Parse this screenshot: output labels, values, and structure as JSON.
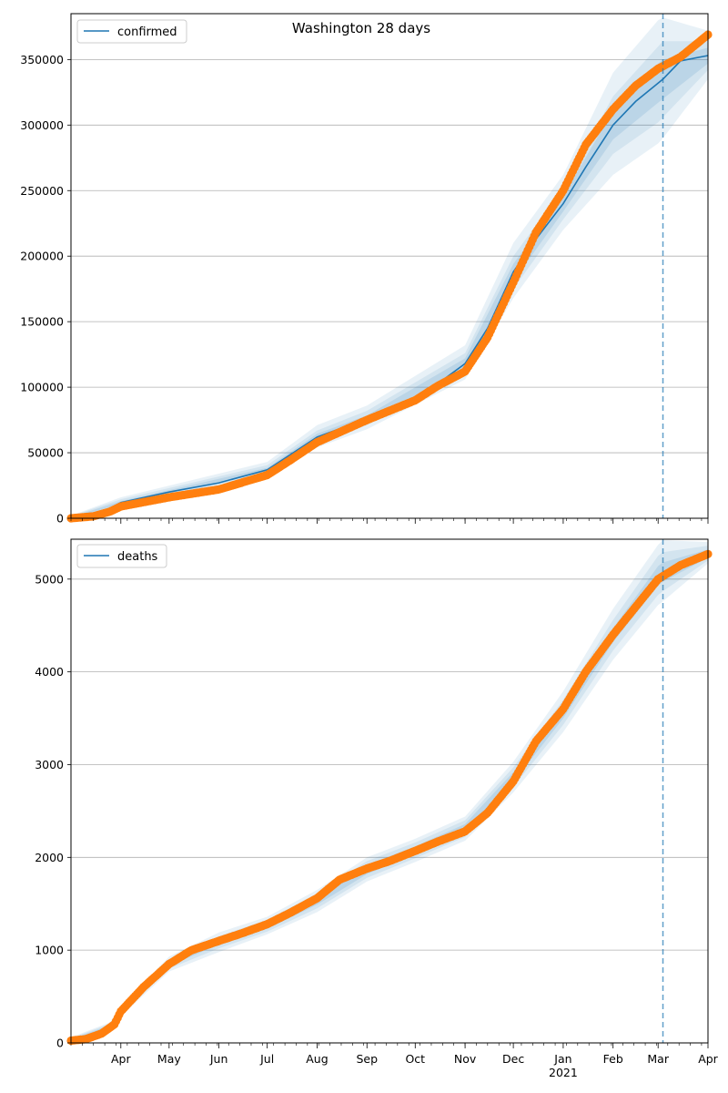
{
  "figure": {
    "title": "Washington 28 days"
  },
  "colors": {
    "model": "#1f77b4",
    "observed": "#ff7f0e",
    "grid": "#b0b0b0",
    "band": "#1f77b4"
  },
  "chart_data": [
    {
      "type": "line",
      "legend": "confirmed",
      "legend_position": "top-left",
      "x_axis": {
        "type": "date",
        "start": "2020-03-01",
        "end": "2021-04-01",
        "month_labels": [
          "Apr",
          "May",
          "Jun",
          "Jul",
          "Aug",
          "Sep",
          "Oct",
          "Nov",
          "Dec",
          "Jan",
          "Feb",
          "Mar",
          "Apr"
        ],
        "year_label": "2021"
      },
      "ylim": [
        0,
        385000
      ],
      "yticks": [
        0,
        50000,
        100000,
        150000,
        200000,
        250000,
        300000,
        350000
      ],
      "grid": "horizontal",
      "forecast_start": "2021-03-04",
      "model": {
        "name": "confirmed",
        "x": [
          "2020-03-01",
          "2020-03-20",
          "2020-04-01",
          "2020-05-01",
          "2020-06-01",
          "2020-07-01",
          "2020-08-01",
          "2020-09-01",
          "2020-10-01",
          "2020-11-01",
          "2020-11-15",
          "2020-12-01",
          "2020-12-15",
          "2021-01-01",
          "2021-01-15",
          "2021-02-01",
          "2021-02-15",
          "2021-03-01",
          "2021-03-04",
          "2021-03-15",
          "2021-04-01"
        ],
        "y": [
          0,
          4000,
          12000,
          20000,
          27000,
          37000,
          62000,
          76000,
          90000,
          118000,
          145000,
          188000,
          213000,
          240000,
          268000,
          300000,
          318000,
          332000,
          335000,
          349000,
          353000
        ]
      },
      "bands": [
        {
          "level": "outer",
          "x": [
            "2020-03-01",
            "2020-04-01",
            "2020-07-01",
            "2020-08-01",
            "2020-09-01",
            "2020-11-01",
            "2020-12-01",
            "2021-01-01",
            "2021-02-01",
            "2021-03-01",
            "2021-03-04",
            "2021-04-01"
          ],
          "lower": [
            0,
            8000,
            32000,
            54000,
            68000,
            106000,
            168000,
            220000,
            262000,
            286000,
            290000,
            335000
          ],
          "upper": [
            2000,
            16000,
            43000,
            71000,
            86000,
            132000,
            210000,
            262000,
            340000,
            380000,
            382000,
            372000
          ]
        },
        {
          "level": "middle",
          "x": [
            "2020-03-01",
            "2020-04-01",
            "2020-07-01",
            "2020-08-01",
            "2020-09-01",
            "2020-11-01",
            "2020-12-01",
            "2021-01-01",
            "2021-02-01",
            "2021-03-01",
            "2021-03-04",
            "2021-04-01"
          ],
          "lower": [
            0,
            9500,
            34000,
            57000,
            71000,
            110000,
            175000,
            228000,
            278000,
            302000,
            306000,
            342000
          ],
          "upper": [
            1500,
            14500,
            40500,
            67000,
            82000,
            126000,
            200000,
            252000,
            322000,
            360000,
            364000,
            364000
          ]
        },
        {
          "level": "inner",
          "x": [
            "2020-03-01",
            "2020-04-01",
            "2020-07-01",
            "2020-08-01",
            "2020-09-01",
            "2020-11-01",
            "2020-12-01",
            "2021-01-01",
            "2021-02-01",
            "2021-03-01",
            "2021-03-04",
            "2021-04-01"
          ],
          "lower": [
            0,
            11000,
            35500,
            59500,
            73500,
            114000,
            181000,
            234000,
            289000,
            317000,
            320000,
            347000
          ],
          "upper": [
            1000,
            13000,
            38500,
            64500,
            78500,
            122000,
            194000,
            246000,
            311000,
            347000,
            350000,
            359000
          ]
        }
      ],
      "observed": {
        "x": [
          "2020-03-01",
          "2020-03-15",
          "2020-03-25",
          "2020-04-01",
          "2020-05-01",
          "2020-06-01",
          "2020-07-01",
          "2020-07-15",
          "2020-08-01",
          "2020-09-01",
          "2020-10-01",
          "2020-10-15",
          "2020-11-01",
          "2020-11-15",
          "2020-12-01",
          "2020-12-15",
          "2021-01-01",
          "2021-01-15",
          "2021-02-01",
          "2021-02-15",
          "2021-03-01",
          "2021-03-15",
          "2021-04-01"
        ],
        "y": [
          0,
          1500,
          5000,
          9000,
          16000,
          22000,
          33000,
          44000,
          58000,
          75000,
          90000,
          101000,
          112000,
          138000,
          180000,
          218000,
          250000,
          285000,
          312000,
          330000,
          343000,
          352000,
          369000
        ]
      }
    },
    {
      "type": "line",
      "legend": "deaths",
      "legend_position": "top-left",
      "x_axis": {
        "type": "date",
        "start": "2020-03-01",
        "end": "2021-04-01",
        "month_labels": [
          "Apr",
          "May",
          "Jun",
          "Jul",
          "Aug",
          "Sep",
          "Oct",
          "Nov",
          "Dec",
          "Jan",
          "Feb",
          "Mar",
          "Apr"
        ],
        "year_label": "2021"
      },
      "ylim": [
        0,
        5430
      ],
      "yticks": [
        0,
        1000,
        2000,
        3000,
        4000,
        5000
      ],
      "grid": "horizontal",
      "forecast_start": "2021-03-04",
      "bands": [
        {
          "level": "outer",
          "x": [
            "2020-03-01",
            "2020-03-25",
            "2020-04-01",
            "2020-05-01",
            "2020-06-01",
            "2020-07-01",
            "2020-08-01",
            "2020-09-01",
            "2020-10-01",
            "2020-11-01",
            "2020-12-01",
            "2021-01-01",
            "2021-02-01",
            "2021-03-01",
            "2021-03-04",
            "2021-04-01"
          ],
          "lower": [
            0,
            120,
            290,
            770,
            980,
            1170,
            1410,
            1740,
            1950,
            2180,
            2700,
            3350,
            4130,
            4720,
            4760,
            5170
          ],
          "upper": [
            60,
            220,
            390,
            930,
            1190,
            1360,
            1650,
            2000,
            2200,
            2440,
            3030,
            3790,
            4680,
            5370,
            5420,
            5400
          ]
        },
        {
          "level": "middle",
          "x": [
            "2020-03-01",
            "2020-03-25",
            "2020-04-01",
            "2020-05-01",
            "2020-06-01",
            "2020-07-01",
            "2020-08-01",
            "2020-09-01",
            "2020-10-01",
            "2020-11-01",
            "2020-12-01",
            "2021-01-01",
            "2021-02-01",
            "2021-03-01",
            "2021-03-04",
            "2021-04-01"
          ],
          "lower": [
            0,
            135,
            305,
            800,
            1020,
            1200,
            1450,
            1780,
            1990,
            2220,
            2760,
            3430,
            4230,
            4830,
            4870,
            5200
          ],
          "upper": [
            50,
            205,
            375,
            900,
            1150,
            1330,
            1610,
            1960,
            2160,
            2400,
            2970,
            3700,
            4560,
            5250,
            5290,
            5360
          ]
        },
        {
          "level": "inner",
          "x": [
            "2020-03-01",
            "2020-03-25",
            "2020-04-01",
            "2020-05-01",
            "2020-06-01",
            "2020-07-01",
            "2020-08-01",
            "2020-09-01",
            "2020-10-01",
            "2020-11-01",
            "2020-12-01",
            "2021-01-01",
            "2021-02-01",
            "2021-03-01",
            "2021-03-04",
            "2021-04-01"
          ],
          "lower": [
            0,
            150,
            320,
            830,
            1060,
            1230,
            1490,
            1820,
            2030,
            2260,
            2810,
            3500,
            4320,
            4930,
            4970,
            5230
          ],
          "upper": [
            40,
            190,
            360,
            870,
            1110,
            1300,
            1570,
            1920,
            2120,
            2360,
            2920,
            3630,
            4470,
            5140,
            5180,
            5320
          ]
        }
      ],
      "observed": {
        "x": [
          "2020-03-01",
          "2020-03-10",
          "2020-03-20",
          "2020-03-28",
          "2020-04-01",
          "2020-04-15",
          "2020-05-01",
          "2020-05-15",
          "2020-06-01",
          "2020-06-15",
          "2020-07-01",
          "2020-07-15",
          "2020-08-01",
          "2020-08-15",
          "2020-09-01",
          "2020-09-15",
          "2020-10-01",
          "2020-10-15",
          "2020-11-01",
          "2020-11-15",
          "2020-12-01",
          "2020-12-15",
          "2021-01-01",
          "2021-01-15",
          "2021-02-01",
          "2021-02-15",
          "2021-03-01",
          "2021-03-15",
          "2021-04-01"
        ],
        "y": [
          25,
          40,
          100,
          200,
          340,
          600,
          850,
          1000,
          1100,
          1180,
          1280,
          1400,
          1560,
          1760,
          1880,
          1960,
          2070,
          2170,
          2280,
          2480,
          2820,
          3250,
          3600,
          4000,
          4400,
          4700,
          5000,
          5150,
          5270
        ]
      }
    }
  ]
}
